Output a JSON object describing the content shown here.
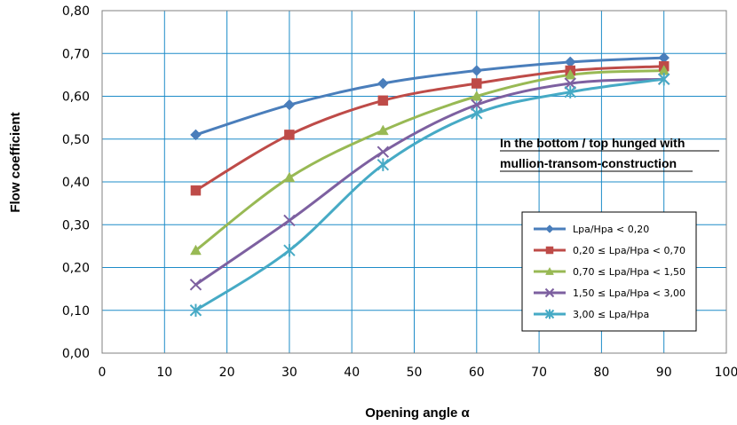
{
  "chart_data": {
    "type": "line",
    "xlabel": "Opening angle α",
    "ylabel": "Flow coefficient",
    "xlim": [
      0,
      100
    ],
    "ylim": [
      0,
      0.8
    ],
    "x_ticks": [
      "0",
      "10",
      "20",
      "30",
      "40",
      "50",
      "60",
      "70",
      "80",
      "90",
      "100"
    ],
    "y_ticks": [
      "0,00",
      "0,10",
      "0,20",
      "0,30",
      "0,40",
      "0,50",
      "0,60",
      "0,70",
      "0,80"
    ],
    "grid": true,
    "legend_position": "lower-right",
    "annotation": [
      "In the bottom / top hunged with",
      "mullion-transom-construction"
    ],
    "x": [
      15,
      30,
      45,
      60,
      75,
      90
    ],
    "series": [
      {
        "name": "Lpa/Hpa < 0,20",
        "color": "#4a7ebb",
        "marker": "diamond",
        "values": [
          0.51,
          0.58,
          0.63,
          0.66,
          0.68,
          0.69
        ]
      },
      {
        "name": "0,20 ≤ Lpa/Hpa < 0,70",
        "color": "#be4b48",
        "marker": "square",
        "values": [
          0.38,
          0.51,
          0.59,
          0.63,
          0.66,
          0.67
        ]
      },
      {
        "name": "0,70 ≤ Lpa/Hpa < 1,50",
        "color": "#98b954",
        "marker": "triangle",
        "values": [
          0.24,
          0.41,
          0.52,
          0.6,
          0.65,
          0.66
        ]
      },
      {
        "name": "1,50 ≤ Lpa/Hpa < 3,00",
        "color": "#7d60a0",
        "marker": "x",
        "values": [
          0.16,
          0.31,
          0.47,
          0.58,
          0.63,
          0.64
        ]
      },
      {
        "name": "3,00 ≤ Lpa/Hpa",
        "color": "#46aac5",
        "marker": "star",
        "values": [
          0.1,
          0.24,
          0.44,
          0.56,
          0.61,
          0.64
        ]
      }
    ]
  }
}
